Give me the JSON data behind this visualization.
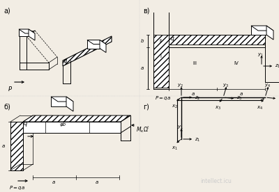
{
  "bg_color": "#f2ede4",
  "label_a": "a)",
  "label_b": "б)",
  "label_v": "в)",
  "label_g": "г)",
  "watermark": "intellect.icu"
}
